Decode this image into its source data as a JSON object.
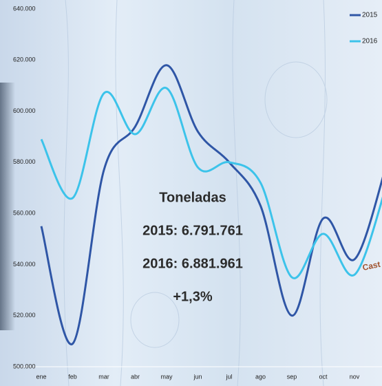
{
  "chart_data": {
    "type": "line",
    "categories": [
      "ene",
      "feb",
      "mar",
      "abr",
      "may",
      "jun",
      "jul",
      "ago",
      "sep",
      "oct",
      "nov",
      null
    ],
    "series": [
      {
        "name": "2015",
        "color": "#2f56a6",
        "values": [
          555000,
          509000,
          577000,
          594000,
          618000,
          592000,
          580000,
          563000,
          520000,
          558000,
          542000,
          578000
        ]
      },
      {
        "name": "2016",
        "color": "#3cc3ea",
        "values": [
          589000,
          566000,
          607000,
          591000,
          609000,
          578000,
          580000,
          572000,
          535000,
          552000,
          536000,
          570000
        ]
      }
    ],
    "ylim": [
      500000,
      640000
    ],
    "yticks": [
      {
        "value": 500000,
        "label": "500.000"
      },
      {
        "value": 520000,
        "label": "520.000"
      },
      {
        "value": 540000,
        "label": "540.000"
      },
      {
        "value": 560000,
        "label": "560.000"
      },
      {
        "value": 580000,
        "label": "580.000"
      },
      {
        "value": 600000,
        "label": "600.000"
      },
      {
        "value": 620000,
        "label": "620.000"
      },
      {
        "value": 640000,
        "label": "640.000"
      }
    ],
    "grid": false,
    "legend": "top-right",
    "annotations": [
      "Toneladas",
      "2015: 6.791.761",
      "2016: 6.881.961",
      "+1,3%",
      "Cast"
    ]
  }
}
